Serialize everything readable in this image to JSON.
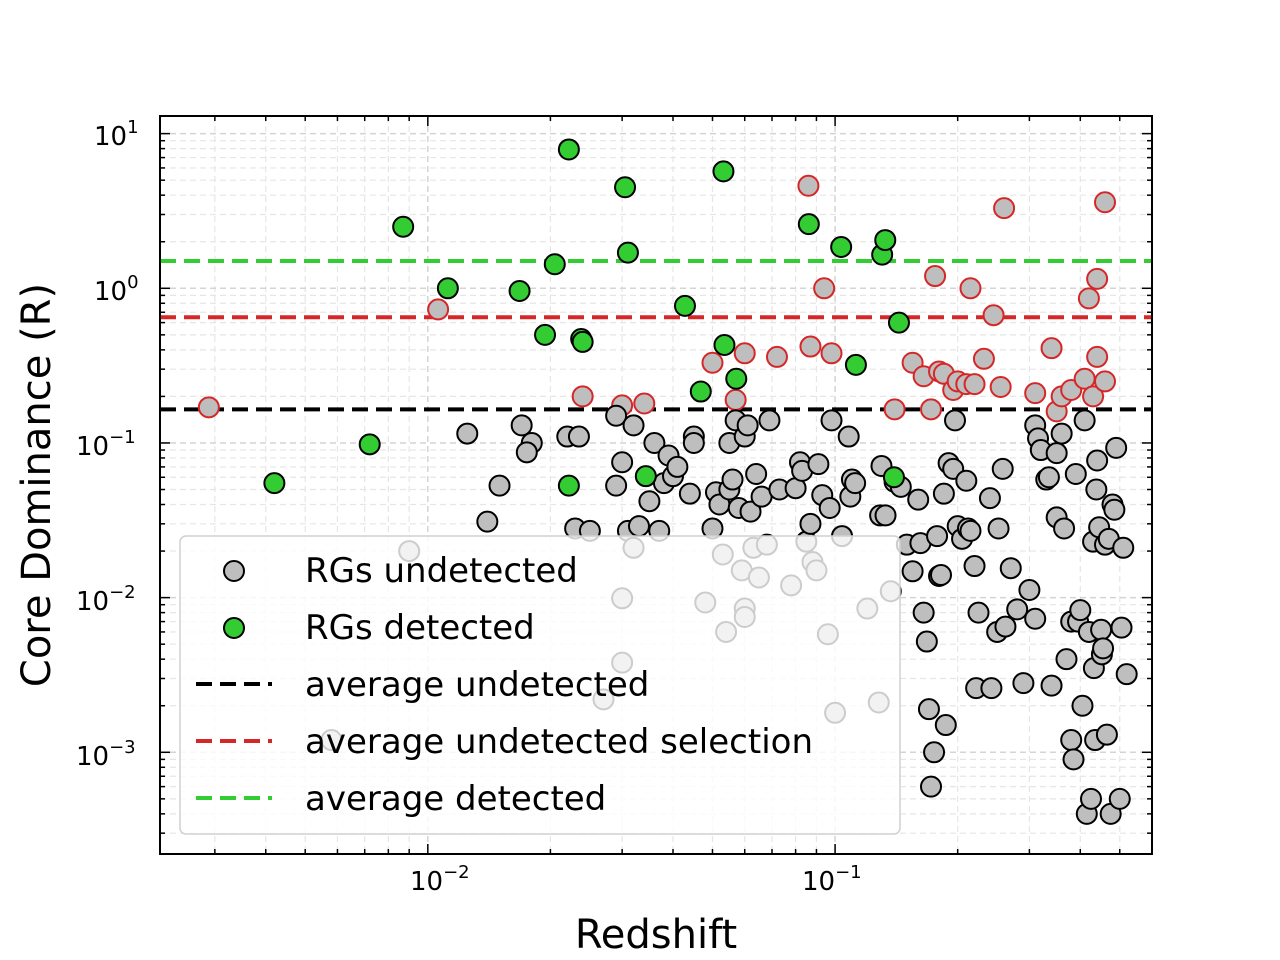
{
  "chart_data": {
    "type": "scatter",
    "title": "",
    "xlabel": "Redshift",
    "ylabel": "Core Dominance (R)",
    "xscale": "log",
    "yscale": "log",
    "xlim": [
      0.0022,
      0.6
    ],
    "ylim": [
      0.00022,
      13
    ],
    "grid": true,
    "legend_position": "lower-left",
    "x_ticks": [
      {
        "base": "10",
        "exp": "−2",
        "value": 0.01
      },
      {
        "base": "10",
        "exp": "−1",
        "value": 0.1
      }
    ],
    "y_ticks": [
      {
        "base": "10",
        "exp": "−3",
        "value": 0.001
      },
      {
        "base": "10",
        "exp": "−2",
        "value": 0.01
      },
      {
        "base": "10",
        "exp": "−1",
        "value": 0.1
      },
      {
        "base": "10",
        "exp": "0",
        "value": 1
      },
      {
        "base": "10",
        "exp": "1",
        "value": 10
      }
    ],
    "colors": {
      "undetected_fill": "#bebebe",
      "detected_fill": "#33cc33",
      "selection_edge": "#d62728",
      "avg_undetected": "#000000",
      "avg_selection": "#d62728",
      "avg_detected": "#33cc33"
    },
    "hlines": [
      {
        "name": "average undetected",
        "value": 0.165,
        "color": "#000000"
      },
      {
        "name": "average undetected selection",
        "value": 0.65,
        "color": "#d62728"
      },
      {
        "name": "average detected",
        "value": 1.5,
        "color": "#33cc33"
      }
    ],
    "legend": [
      {
        "label": "RGs undetected",
        "kind": "marker",
        "fill": "#bebebe",
        "edge": "#000000"
      },
      {
        "label": "RGs detected",
        "kind": "marker",
        "fill": "#33cc33",
        "edge": "#000000"
      },
      {
        "label": "average undetected",
        "kind": "line",
        "color": "#000000"
      },
      {
        "label": "average undetected selection",
        "kind": "line",
        "color": "#d62728"
      },
      {
        "label": "average detected",
        "kind": "line",
        "color": "#33cc33"
      }
    ],
    "series": [
      {
        "name": "RGs undetected (selection)",
        "fill": "#bebebe",
        "edge": "#d62728",
        "points": [
          [
            0.0029,
            0.17
          ],
          [
            0.0106,
            0.73
          ],
          [
            0.024,
            0.2
          ],
          [
            0.03,
            0.175
          ],
          [
            0.034,
            0.18
          ],
          [
            0.05,
            0.33
          ],
          [
            0.057,
            0.19
          ],
          [
            0.06,
            0.38
          ],
          [
            0.072,
            0.36
          ],
          [
            0.086,
            4.6
          ],
          [
            0.087,
            0.42
          ],
          [
            0.094,
            1.0
          ],
          [
            0.098,
            0.38
          ],
          [
            0.14,
            0.165
          ],
          [
            0.155,
            0.33
          ],
          [
            0.165,
            0.27
          ],
          [
            0.172,
            0.165
          ],
          [
            0.176,
            1.2
          ],
          [
            0.18,
            0.29
          ],
          [
            0.185,
            0.28
          ],
          [
            0.195,
            0.22
          ],
          [
            0.2,
            0.25
          ],
          [
            0.21,
            0.24
          ],
          [
            0.215,
            1.0
          ],
          [
            0.22,
            0.24
          ],
          [
            0.232,
            0.35
          ],
          [
            0.245,
            0.67
          ],
          [
            0.255,
            0.23
          ],
          [
            0.26,
            3.3
          ],
          [
            0.31,
            0.21
          ],
          [
            0.34,
            0.41
          ],
          [
            0.35,
            0.16
          ],
          [
            0.36,
            0.2
          ],
          [
            0.38,
            0.22
          ],
          [
            0.41,
            0.26
          ],
          [
            0.42,
            0.86
          ],
          [
            0.43,
            0.2
          ],
          [
            0.44,
            1.15
          ],
          [
            0.44,
            0.36
          ],
          [
            0.46,
            0.25
          ],
          [
            0.46,
            3.6
          ]
        ]
      },
      {
        "name": "RGs undetected",
        "fill": "#bebebe",
        "edge": "#000000",
        "points": [
          [
            0.0058,
            0.0012
          ],
          [
            0.009,
            0.02
          ],
          [
            0.0125,
            0.115
          ],
          [
            0.014,
            0.031
          ],
          [
            0.015,
            0.053
          ],
          [
            0.017,
            0.13
          ],
          [
            0.018,
            0.1
          ],
          [
            0.0175,
            0.087
          ],
          [
            0.022,
            0.11
          ],
          [
            0.023,
            0.028
          ],
          [
            0.0235,
            0.11
          ],
          [
            0.025,
            0.027
          ],
          [
            0.027,
            0.0022
          ],
          [
            0.029,
            0.053
          ],
          [
            0.029,
            0.15
          ],
          [
            0.03,
            0.0099
          ],
          [
            0.03,
            0.0038
          ],
          [
            0.03,
            0.075
          ],
          [
            0.031,
            0.027
          ],
          [
            0.032,
            0.13
          ],
          [
            0.032,
            0.021
          ],
          [
            0.033,
            0.029
          ],
          [
            0.035,
            0.042
          ],
          [
            0.036,
            0.1
          ],
          [
            0.037,
            0.027
          ],
          [
            0.038,
            0.055
          ],
          [
            0.039,
            0.083
          ],
          [
            0.04,
            0.061
          ],
          [
            0.041,
            0.07
          ],
          [
            0.044,
            0.047
          ],
          [
            0.045,
            0.11
          ],
          [
            0.045,
            0.1
          ],
          [
            0.048,
            0.0093
          ],
          [
            0.05,
            0.028
          ],
          [
            0.051,
            0.048
          ],
          [
            0.052,
            0.04
          ],
          [
            0.053,
            0.019
          ],
          [
            0.054,
            0.006
          ],
          [
            0.055,
            0.05
          ],
          [
            0.055,
            0.1
          ],
          [
            0.056,
            0.058
          ],
          [
            0.057,
            0.14
          ],
          [
            0.058,
            0.038
          ],
          [
            0.059,
            0.015
          ],
          [
            0.06,
            0.0085
          ],
          [
            0.06,
            0.0075
          ],
          [
            0.06,
            0.11
          ],
          [
            0.061,
            0.13
          ],
          [
            0.062,
            0.036
          ],
          [
            0.063,
            0.021
          ],
          [
            0.064,
            0.063
          ],
          [
            0.065,
            0.0135
          ],
          [
            0.066,
            0.045
          ],
          [
            0.068,
            0.022
          ],
          [
            0.069,
            0.14
          ],
          [
            0.073,
            0.05
          ],
          [
            0.078,
            0.012
          ],
          [
            0.08,
            0.051
          ],
          [
            0.082,
            0.075
          ],
          [
            0.083,
            0.066
          ],
          [
            0.085,
            0.023
          ],
          [
            0.087,
            0.03
          ],
          [
            0.088,
            0.017
          ],
          [
            0.09,
            0.015
          ],
          [
            0.091,
            0.073
          ],
          [
            0.093,
            0.046
          ],
          [
            0.096,
            0.0058
          ],
          [
            0.097,
            0.038
          ],
          [
            0.098,
            0.14
          ],
          [
            0.1,
            0.0018
          ],
          [
            0.104,
            0.025
          ],
          [
            0.108,
            0.11
          ],
          [
            0.109,
            0.045
          ],
          [
            0.11,
            0.058
          ],
          [
            0.112,
            0.055
          ],
          [
            0.12,
            0.0085
          ],
          [
            0.128,
            0.0021
          ],
          [
            0.129,
            0.034
          ],
          [
            0.13,
            0.071
          ],
          [
            0.133,
            0.034
          ],
          [
            0.137,
            0.011
          ],
          [
            0.14,
            0.056
          ],
          [
            0.145,
            0.052
          ],
          [
            0.15,
            0.022
          ],
          [
            0.155,
            0.0148
          ],
          [
            0.16,
            0.043
          ],
          [
            0.162,
            0.0225
          ],
          [
            0.165,
            0.008
          ],
          [
            0.168,
            0.0052
          ],
          [
            0.17,
            0.0019
          ],
          [
            0.172,
            0.0006
          ],
          [
            0.175,
            0.001
          ],
          [
            0.178,
            0.025
          ],
          [
            0.18,
            0.0138
          ],
          [
            0.182,
            0.014
          ],
          [
            0.185,
            0.047
          ],
          [
            0.187,
            0.0015
          ],
          [
            0.19,
            0.074
          ],
          [
            0.195,
            0.068
          ],
          [
            0.197,
            0.14
          ],
          [
            0.2,
            0.029
          ],
          [
            0.205,
            0.024
          ],
          [
            0.21,
            0.057
          ],
          [
            0.212,
            0.028
          ],
          [
            0.215,
            0.027
          ],
          [
            0.22,
            0.016
          ],
          [
            0.222,
            0.0026
          ],
          [
            0.225,
            0.008
          ],
          [
            0.24,
            0.044
          ],
          [
            0.242,
            0.0026
          ],
          [
            0.25,
            0.006
          ],
          [
            0.252,
            0.028
          ],
          [
            0.258,
            0.068
          ],
          [
            0.262,
            0.0065
          ],
          [
            0.27,
            0.0155
          ],
          [
            0.28,
            0.0084
          ],
          [
            0.29,
            0.0028
          ],
          [
            0.3,
            0.0112
          ],
          [
            0.31,
            0.0073
          ],
          [
            0.31,
            0.13
          ],
          [
            0.315,
            0.107
          ],
          [
            0.32,
            0.09
          ],
          [
            0.33,
            0.058
          ],
          [
            0.335,
            0.06
          ],
          [
            0.34,
            0.0027
          ],
          [
            0.35,
            0.086
          ],
          [
            0.35,
            0.033
          ],
          [
            0.36,
            0.115
          ],
          [
            0.365,
            0.028
          ],
          [
            0.37,
            0.004
          ],
          [
            0.38,
            0.007
          ],
          [
            0.38,
            0.0012
          ],
          [
            0.385,
            0.0009
          ],
          [
            0.39,
            0.063
          ],
          [
            0.395,
            0.007
          ],
          [
            0.4,
            0.0083
          ],
          [
            0.405,
            0.002
          ],
          [
            0.41,
            0.14
          ],
          [
            0.415,
            0.0004
          ],
          [
            0.42,
            0.006
          ],
          [
            0.425,
            0.0005
          ],
          [
            0.43,
            0.023
          ],
          [
            0.432,
            0.0035
          ],
          [
            0.435,
            0.0012
          ],
          [
            0.438,
            0.05
          ],
          [
            0.44,
            0.077
          ],
          [
            0.445,
            0.0285
          ],
          [
            0.45,
            0.0062
          ],
          [
            0.452,
            0.0043
          ],
          [
            0.455,
            0.0047
          ],
          [
            0.46,
            0.022
          ],
          [
            0.465,
            0.0013
          ],
          [
            0.47,
            0.024
          ],
          [
            0.475,
            0.0004
          ],
          [
            0.48,
            0.04
          ],
          [
            0.485,
            0.037
          ],
          [
            0.49,
            0.093
          ],
          [
            0.5,
            0.0005
          ],
          [
            0.505,
            0.0064
          ],
          [
            0.51,
            0.021
          ],
          [
            0.52,
            0.0032
          ]
        ]
      },
      {
        "name": "RGs detected",
        "fill": "#33cc33",
        "edge": "#000000",
        "points": [
          [
            0.0042,
            0.055
          ],
          [
            0.0072,
            0.098
          ],
          [
            0.0087,
            2.5
          ],
          [
            0.0112,
            1.0
          ],
          [
            0.0168,
            0.96
          ],
          [
            0.0194,
            0.5
          ],
          [
            0.0205,
            1.43
          ],
          [
            0.0222,
            0.053
          ],
          [
            0.0222,
            7.9
          ],
          [
            0.0238,
            0.47
          ],
          [
            0.024,
            0.45
          ],
          [
            0.0305,
            4.5
          ],
          [
            0.031,
            1.7
          ],
          [
            0.0343,
            0.061
          ],
          [
            0.0428,
            0.77
          ],
          [
            0.0468,
            0.215
          ],
          [
            0.0532,
            5.7
          ],
          [
            0.0535,
            0.43
          ],
          [
            0.0572,
            0.26
          ],
          [
            0.0862,
            2.6
          ],
          [
            0.1035,
            1.85
          ],
          [
            0.1125,
            0.32
          ],
          [
            0.1305,
            1.65
          ],
          [
            0.1328,
            2.05
          ],
          [
            0.1395,
            0.06
          ],
          [
            0.1435,
            0.6
          ]
        ]
      }
    ]
  }
}
